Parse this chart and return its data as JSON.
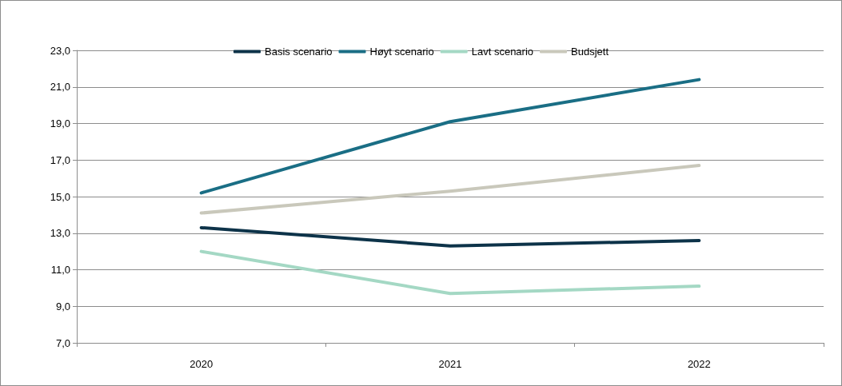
{
  "chart_data": {
    "type": "line",
    "categories": [
      "2020",
      "2021",
      "2022"
    ],
    "series": [
      {
        "name": "Basis scenario",
        "color": "#0d3349",
        "values": [
          13.3,
          12.3,
          12.6
        ]
      },
      {
        "name": "Høyt scenario",
        "color": "#1a6e85",
        "values": [
          15.2,
          19.1,
          21.4
        ]
      },
      {
        "name": "Lavt scenario",
        "color": "#a4d8c4",
        "values": [
          12.0,
          9.7,
          10.1
        ]
      },
      {
        "name": "Budsjett",
        "color": "#c9c8bb",
        "values": [
          14.1,
          15.3,
          16.7
        ]
      }
    ],
    "ylim": [
      7,
      23
    ],
    "yticks": [
      {
        "value": 7,
        "label": "7,0"
      },
      {
        "value": 9,
        "label": "9,0"
      },
      {
        "value": 11,
        "label": "11,0"
      },
      {
        "value": 13,
        "label": "13,0"
      },
      {
        "value": 15,
        "label": "15,0"
      },
      {
        "value": 17,
        "label": "17,0"
      },
      {
        "value": 19,
        "label": "19,0"
      },
      {
        "value": 21,
        "label": "21,0"
      },
      {
        "value": 23,
        "label": "23,0"
      }
    ],
    "grid": "y",
    "legend": "top",
    "marker": "none",
    "line_style": "solid"
  }
}
